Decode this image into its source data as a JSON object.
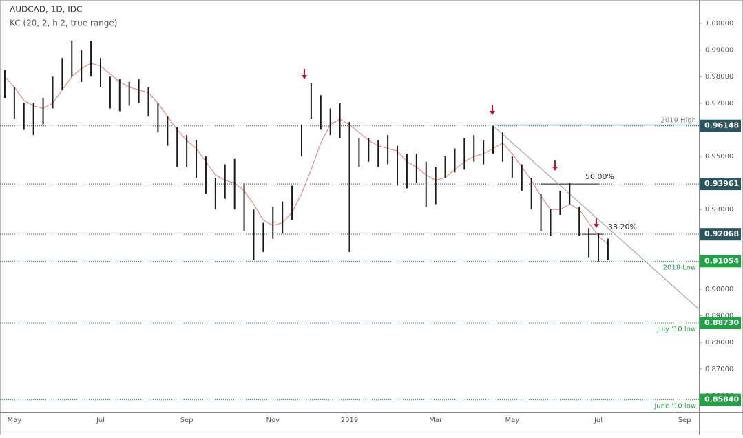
{
  "chart_data": {
    "type": "range-bar",
    "title": "AUDCAD, 1D, IDC",
    "subtitle": "KC (20, 2, hl2, true range)",
    "bar_color": "#1a1a1a",
    "categories": [
      null,
      "May",
      null,
      null,
      null,
      null,
      null,
      null,
      null,
      null,
      "Jul",
      null,
      null,
      null,
      null,
      null,
      null,
      null,
      null,
      "Sep",
      null,
      null,
      null,
      null,
      null,
      null,
      null,
      null,
      "Nov",
      null,
      null,
      null,
      null,
      null,
      null,
      null,
      "2019",
      null,
      null,
      null,
      null,
      null,
      null,
      null,
      null,
      "Mar",
      null,
      null,
      null,
      null,
      null,
      null,
      null,
      "May",
      null,
      null,
      null,
      null,
      null,
      null,
      null,
      null,
      "Jul",
      null,
      null,
      null,
      null,
      null,
      null,
      null,
      null,
      "Sep",
      null
    ],
    "highs": [
      0.9825,
      0.976,
      0.97,
      0.97,
      0.972,
      0.98,
      0.987,
      0.9935,
      0.99,
      0.9935,
      0.987,
      0.98,
      0.979,
      0.978,
      0.979,
      0.976,
      0.97,
      0.965,
      0.961,
      0.958,
      0.956,
      0.95,
      0.942,
      0.947,
      0.949,
      0.94,
      0.93,
      0.925,
      0.931,
      0.933,
      0.939,
      0.962,
      0.9775,
      0.973,
      0.968,
      0.97,
      0.963,
      0.957,
      0.957,
      0.956,
      0.958,
      0.954,
      0.951,
      0.951,
      0.948,
      0.946,
      0.95,
      0.953,
      0.957,
      0.958,
      0.956,
      0.9615,
      0.959,
      0.95,
      0.947,
      0.942,
      0.936,
      0.93,
      0.937,
      0.94,
      0.931,
      0.923,
      0.921,
      0.919,
      null,
      null,
      null,
      null,
      null,
      null,
      null,
      null,
      null
    ],
    "lows": [
      0.972,
      0.964,
      0.96,
      0.958,
      0.962,
      0.968,
      0.975,
      0.98,
      0.978,
      0.98,
      0.976,
      0.968,
      0.967,
      0.969,
      0.97,
      0.965,
      0.959,
      0.954,
      0.946,
      0.946,
      0.942,
      0.936,
      0.93,
      0.934,
      0.93,
      0.922,
      0.911,
      0.914,
      0.919,
      0.921,
      0.926,
      0.95,
      0.964,
      0.96,
      0.958,
      0.957,
      0.914,
      0.946,
      0.948,
      0.946,
      0.947,
      0.939,
      0.938,
      0.94,
      0.931,
      0.932,
      0.942,
      0.944,
      0.945,
      0.948,
      0.947,
      0.951,
      0.948,
      0.942,
      0.937,
      0.93,
      0.922,
      0.92,
      0.928,
      0.932,
      0.92,
      0.912,
      0.9105,
      0.911,
      null,
      null,
      null,
      null,
      null,
      null,
      null,
      null,
      null
    ],
    "kc_color": "#e58a80",
    "kc_mid": [
      0.98,
      0.976,
      0.971,
      0.969,
      0.968,
      0.97,
      0.975,
      0.98,
      0.983,
      0.985,
      0.984,
      0.981,
      0.978,
      0.976,
      0.975,
      0.974,
      0.97,
      0.965,
      0.96,
      0.956,
      0.953,
      0.948,
      0.943,
      0.941,
      0.94,
      0.937,
      0.932,
      0.926,
      0.924,
      0.925,
      0.929,
      0.936,
      0.945,
      0.955,
      0.962,
      0.964,
      0.962,
      0.959,
      0.956,
      0.954,
      0.953,
      0.952,
      0.948,
      0.946,
      0.943,
      0.941,
      0.942,
      0.945,
      0.948,
      0.95,
      0.951,
      0.953,
      0.955,
      0.951,
      0.946,
      0.941,
      0.935,
      0.93,
      0.93,
      0.932,
      0.93,
      0.925,
      0.92,
      0.917,
      null,
      null,
      null,
      null,
      null,
      null,
      null,
      null,
      null
    ],
    "ylim": [
      0.85389,
      1.00881
    ],
    "yticks": [
      {
        "value": 0.86,
        "label": "0.86000"
      },
      {
        "value": 0.87,
        "label": "0.87000"
      },
      {
        "value": 0.88,
        "label": "0.88000"
      },
      {
        "value": 0.89,
        "label": "0.89000"
      },
      {
        "value": 0.9,
        "label": "0.90000"
      },
      {
        "value": 0.91,
        "label": "0.91000"
      },
      {
        "value": 0.92,
        "label": "0.92000"
      },
      {
        "value": 0.93,
        "label": "0.93000"
      },
      {
        "value": 0.94,
        "label": "0.94000"
      },
      {
        "value": 0.95,
        "label": "0.95000"
      },
      {
        "value": 0.96,
        "label": "0.96000"
      },
      {
        "value": 0.97,
        "label": "0.97000"
      },
      {
        "value": 0.98,
        "label": "0.98000"
      },
      {
        "value": 0.99,
        "label": "0.99000"
      },
      {
        "value": 1.0,
        "label": "1.00000"
      }
    ],
    "levels": [
      {
        "value": 0.96148,
        "label": "0.96148",
        "note": "2019 High",
        "color": "#2b5660"
      },
      {
        "value": 0.93961,
        "label": "0.93961",
        "fib": "50.00%",
        "color": "#2b5660"
      },
      {
        "value": 0.92068,
        "label": "0.92068",
        "fib": "38.20%",
        "color": "#2b5660"
      },
      {
        "value": 0.91054,
        "label": "0.91054",
        "note": "2018 Low",
        "color": "#22a046"
      },
      {
        "value": 0.8873,
        "label": "0.88730",
        "note": "July '10 low",
        "color": "#22a046"
      },
      {
        "value": 0.8584,
        "label": "0.85840",
        "note": "June '10 low",
        "color": "#22a046"
      }
    ],
    "zone": {
      "top": 0.9621,
      "color": "#bfe1ec"
    },
    "trendline": {
      "start": 0.9615,
      "end": 0.8925,
      "color": "#999999"
    }
  }
}
